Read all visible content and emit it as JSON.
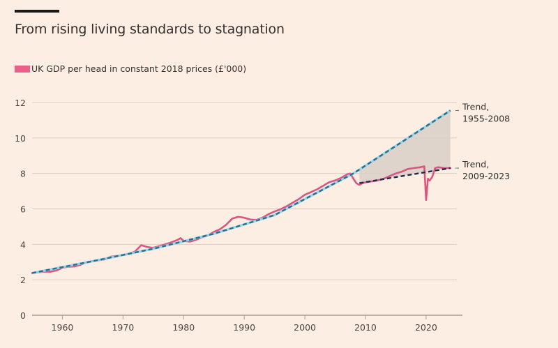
{
  "title": "From rising living standards to stagnation",
  "legend": {
    "label": "UK GDP per head in constant 2018 prices (£'000)",
    "color": "#e9608b"
  },
  "colors": {
    "background": "#fdeee3",
    "gdp_line": "#d9577f",
    "trend1": "#2b6e8a",
    "trend1_glow": "#8fd3ec",
    "trend2": "#1f2a4a",
    "gap_fill": "#d9cfc8",
    "grid": "#d8ccc2",
    "axis": "#a89e97"
  },
  "chart_data": {
    "type": "line",
    "title": "From rising living standards to stagnation",
    "xlabel": "",
    "ylabel": "",
    "xlim": [
      1955,
      2024.5
    ],
    "ylim": [
      0,
      12
    ],
    "grid": true,
    "legend_position": "top-left",
    "xticks": [
      1960,
      1970,
      1980,
      1990,
      2000,
      2010,
      2020
    ],
    "yticks": [
      0,
      2,
      4,
      6,
      8,
      10,
      12
    ],
    "series": [
      {
        "name": "UK GDP per head in constant 2018 prices (£'000)",
        "style": "solid",
        "x": [
          1955,
          1956,
          1957,
          1958,
          1959,
          1960,
          1961,
          1962,
          1963,
          1964,
          1965,
          1966,
          1967,
          1968,
          1969,
          1970,
          1971,
          1972,
          1973,
          1973.5,
          1974,
          1975,
          1976,
          1977,
          1978,
          1979,
          1979.5,
          1980,
          1981,
          1982,
          1983,
          1984,
          1985,
          1986,
          1987,
          1988,
          1989,
          1990,
          1991,
          1992,
          1993,
          1994,
          1995,
          1996,
          1997,
          1998,
          1999,
          2000,
          2001,
          2002,
          2003,
          2004,
          2005,
          2006,
          2007,
          2007.5,
          2008,
          2008.5,
          2009,
          2009.5,
          2010,
          2011,
          2012,
          2013,
          2014,
          2015,
          2016,
          2017,
          2018,
          2019,
          2019.7,
          2020,
          2020.3,
          2020.6,
          2021,
          2021.5,
          2022,
          2023,
          2024
        ],
        "values": [
          2.38,
          2.42,
          2.46,
          2.45,
          2.52,
          2.68,
          2.74,
          2.75,
          2.85,
          3.0,
          3.05,
          3.1,
          3.15,
          3.3,
          3.35,
          3.4,
          3.45,
          3.6,
          3.95,
          3.9,
          3.85,
          3.8,
          3.9,
          4.0,
          4.12,
          4.25,
          4.35,
          4.2,
          4.15,
          4.25,
          4.4,
          4.5,
          4.7,
          4.85,
          5.1,
          5.45,
          5.55,
          5.5,
          5.4,
          5.38,
          5.5,
          5.7,
          5.85,
          5.98,
          6.15,
          6.35,
          6.55,
          6.8,
          6.95,
          7.1,
          7.3,
          7.5,
          7.6,
          7.75,
          7.95,
          8.0,
          7.7,
          7.45,
          7.35,
          7.45,
          7.5,
          7.55,
          7.6,
          7.7,
          7.85,
          8.0,
          8.1,
          8.25,
          8.3,
          8.35,
          8.4,
          6.5,
          7.7,
          7.6,
          7.8,
          8.3,
          8.35,
          8.3,
          8.3
        ]
      },
      {
        "name": "Trend, 1955-2008",
        "style": "dashed",
        "x": [
          1955,
          1965,
          1975,
          1985,
          1995,
          2008,
          2015,
          2024
        ],
        "values": [
          2.38,
          3.05,
          3.75,
          4.6,
          5.65,
          8.0,
          9.55,
          11.55
        ]
      },
      {
        "name": "Trend, 2009-2023",
        "style": "dashed",
        "x": [
          2009,
          2024
        ],
        "values": [
          7.45,
          8.3
        ]
      }
    ],
    "shaded_area": {
      "label": "Gap between trends",
      "x_from": 2009,
      "x_to": 2024
    },
    "annotations": [
      {
        "line1": "Trend,",
        "line2": "1955-2008",
        "anchor_y": 11.55
      },
      {
        "line1": "Trend,",
        "line2": "2009-2023",
        "anchor_y": 8.3
      }
    ]
  }
}
